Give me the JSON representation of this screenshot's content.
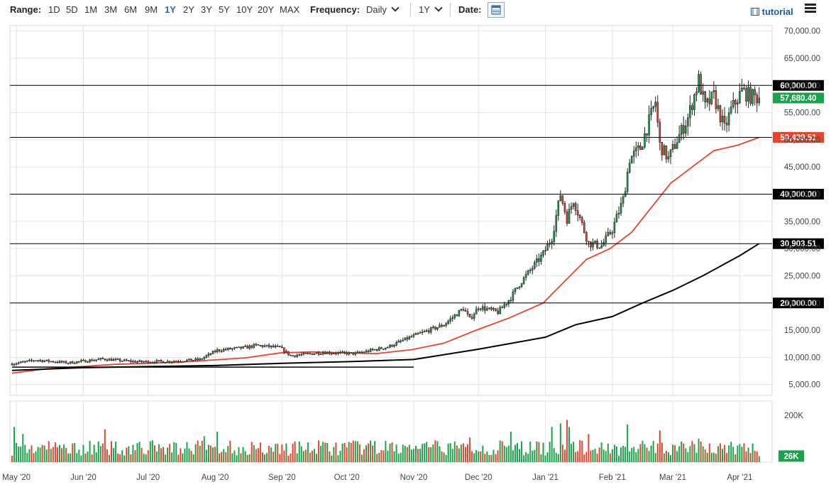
{
  "toolbar": {
    "range_label": "Range:",
    "ranges": [
      "1D",
      "5D",
      "1M",
      "3M",
      "6M",
      "9M",
      "1Y",
      "2Y",
      "3Y",
      "5Y",
      "10Y",
      "20Y",
      "MAX"
    ],
    "active_range": "1Y",
    "frequency_label": "Frequency:",
    "frequency_value": "Daily",
    "period_value": "1Y",
    "date_label": "Date:",
    "tutorial_label": "tutorial",
    "icons": {
      "date": "calendar-icon",
      "tutorial": "film-icon",
      "menu": "hamburger-menu-icon"
    }
  },
  "chart_data": {
    "type": "candlestick",
    "ylim": [
      3000,
      71000
    ],
    "y_ticks": [
      5000,
      10000,
      15000,
      20000,
      25000,
      30000,
      35000,
      40000,
      45000,
      50000,
      55000,
      60000,
      65000,
      70000
    ],
    "y_tick_labels": [
      "5,000.00",
      "10,000.00",
      "15,000.00",
      "20,000.00",
      "25,000.00",
      "30,000.00",
      "35,000.00",
      "40,000.00",
      "45,000.00",
      "50,000.00",
      "55,000.00",
      "60,000.00",
      "65,000.00",
      "70,000.00"
    ],
    "x_labels": [
      "May '20",
      "Jun '20",
      "Jul '20",
      "Aug '20",
      "Sep '20",
      "Oct '20",
      "Nov '20",
      "Dec '20",
      "Jan '21",
      "Feb '21",
      "Mar '21",
      "Apr '21"
    ],
    "x_label_dates": [
      "2020-05-01",
      "2020-06-01",
      "2020-07-01",
      "2020-08-01",
      "2020-09-01",
      "2020-10-01",
      "2020-11-01",
      "2020-12-01",
      "2021-01-01",
      "2021-02-01",
      "2021-03-01",
      "2021-04-01"
    ],
    "x_range": [
      "2020-04-28",
      "2021-04-16"
    ],
    "anchors": [
      [
        "2020-04-29",
        8800
      ],
      [
        "2020-05-10",
        9500
      ],
      [
        "2020-05-25",
        9000
      ],
      [
        "2020-06-10",
        9700
      ],
      [
        "2020-06-25",
        9200
      ],
      [
        "2020-07-10",
        9250
      ],
      [
        "2020-07-25",
        9600
      ],
      [
        "2020-08-02",
        11300
      ],
      [
        "2020-08-15",
        11800
      ],
      [
        "2020-08-20",
        12200
      ],
      [
        "2020-08-31",
        11800
      ],
      [
        "2020-09-05",
        10300
      ],
      [
        "2020-09-20",
        10900
      ],
      [
        "2020-10-05",
        10700
      ],
      [
        "2020-10-20",
        11900
      ],
      [
        "2020-10-31",
        13800
      ],
      [
        "2020-11-15",
        16000
      ],
      [
        "2020-11-24",
        19000
      ],
      [
        "2020-11-27",
        17000
      ],
      [
        "2020-12-01",
        19300
      ],
      [
        "2020-12-10",
        18300
      ],
      [
        "2020-12-16",
        21000
      ],
      [
        "2020-12-20",
        23500
      ],
      [
        "2020-12-31",
        29000
      ],
      [
        "2021-01-04",
        32000
      ],
      [
        "2021-01-08",
        40000
      ],
      [
        "2021-01-11",
        35500
      ],
      [
        "2021-01-14",
        39000
      ],
      [
        "2021-01-21",
        31000
      ],
      [
        "2021-01-27",
        30500
      ],
      [
        "2021-02-01",
        33500
      ],
      [
        "2021-02-06",
        39000
      ],
      [
        "2021-02-09",
        46500
      ],
      [
        "2021-02-14",
        48500
      ],
      [
        "2021-02-21",
        57000
      ],
      [
        "2021-02-23",
        49000
      ],
      [
        "2021-02-27",
        46500
      ],
      [
        "2021-03-03",
        50000
      ],
      [
        "2021-03-08",
        54000
      ],
      [
        "2021-03-13",
        61000
      ],
      [
        "2021-03-16",
        56000
      ],
      [
        "2021-03-20",
        58000
      ],
      [
        "2021-03-25",
        52000
      ],
      [
        "2021-03-28",
        55500
      ],
      [
        "2021-04-02",
        59000
      ],
      [
        "2021-04-06",
        58000
      ],
      [
        "2021-04-10",
        57680
      ]
    ],
    "price_seed": 7,
    "horizontal_lines": [
      {
        "value": 60000,
        "label": "60,000.00",
        "color": "#000000"
      },
      {
        "value": 50439.51,
        "label": "50,439.51",
        "color": "#e8442d"
      },
      {
        "value": 40000,
        "label": "40,000.00",
        "color": "#000000"
      },
      {
        "value": 30903.51,
        "label": "30,903.51",
        "color": "#000000"
      },
      {
        "value": 20000,
        "label": "20,000.00",
        "color": "#000000"
      }
    ],
    "last_price": {
      "value": 57680.4,
      "label": "57,680.40",
      "color": "#1aa34a"
    },
    "ma50": {
      "color": "#e8442d",
      "points": [
        [
          "2020-04-29",
          7100
        ],
        [
          "2020-05-15",
          7900
        ],
        [
          "2020-06-15",
          8700
        ],
        [
          "2020-07-15",
          9100
        ],
        [
          "2020-08-15",
          9900
        ],
        [
          "2020-08-31",
          10800
        ],
        [
          "2020-09-15",
          11000
        ],
        [
          "2020-09-30",
          10800
        ],
        [
          "2020-10-15",
          10700
        ],
        [
          "2020-10-31",
          11400
        ],
        [
          "2020-11-15",
          12600
        ],
        [
          "2020-11-30",
          15000
        ],
        [
          "2020-12-15",
          17200
        ],
        [
          "2020-12-31",
          20000
        ],
        [
          "2021-01-10",
          24000
        ],
        [
          "2021-01-20",
          28000
        ],
        [
          "2021-01-31",
          30000
        ],
        [
          "2021-02-10",
          33000
        ],
        [
          "2021-02-20",
          38000
        ],
        [
          "2021-02-28",
          42000
        ],
        [
          "2021-03-10",
          45000
        ],
        [
          "2021-03-20",
          48000
        ],
        [
          "2021-03-31",
          49000
        ],
        [
          "2021-04-10",
          50440
        ]
      ]
    },
    "ma200": {
      "color": "#000000",
      "points": [
        [
          "2020-04-29",
          7600
        ],
        [
          "2020-06-01",
          8100
        ],
        [
          "2020-07-01",
          8300
        ],
        [
          "2020-08-01",
          8500
        ],
        [
          "2020-09-01",
          8900
        ],
        [
          "2020-10-01",
          9200
        ],
        [
          "2020-11-01",
          9600
        ],
        [
          "2020-12-01",
          11500
        ],
        [
          "2021-01-01",
          13700
        ],
        [
          "2021-01-15",
          16000
        ],
        [
          "2021-02-01",
          17500
        ],
        [
          "2021-02-15",
          20000
        ],
        [
          "2021-03-01",
          22300
        ],
        [
          "2021-03-15",
          25000
        ],
        [
          "2021-04-01",
          28700
        ],
        [
          "2021-04-10",
          30903
        ]
      ]
    },
    "trendline": {
      "color": "#000000",
      "from": [
        "2020-04-29",
        8200
      ],
      "to": [
        "2020-11-01",
        8200
      ]
    },
    "volume": {
      "ylim": [
        0,
        260000
      ],
      "tick_value": 200000,
      "tick_label": "200K",
      "last_value": 26000,
      "last_label": "26K",
      "seed": 13,
      "base": 55000,
      "spikes": [
        [
          "2020-04-30",
          150000
        ],
        [
          "2020-05-04",
          120000
        ],
        [
          "2020-06-11",
          140000
        ],
        [
          "2020-07-27",
          110000
        ],
        [
          "2020-08-02",
          130000
        ],
        [
          "2020-11-27",
          105000
        ],
        [
          "2020-12-16",
          130000
        ],
        [
          "2021-01-04",
          150000
        ],
        [
          "2021-01-08",
          165000
        ],
        [
          "2021-01-11",
          180000
        ],
        [
          "2021-01-12",
          150000
        ],
        [
          "2021-01-21",
          120000
        ],
        [
          "2021-02-08",
          160000
        ],
        [
          "2021-02-23",
          135000
        ],
        [
          "2021-03-13",
          100000
        ]
      ],
      "up_color": "#1aa34a",
      "down_color": "#e8442d"
    }
  }
}
